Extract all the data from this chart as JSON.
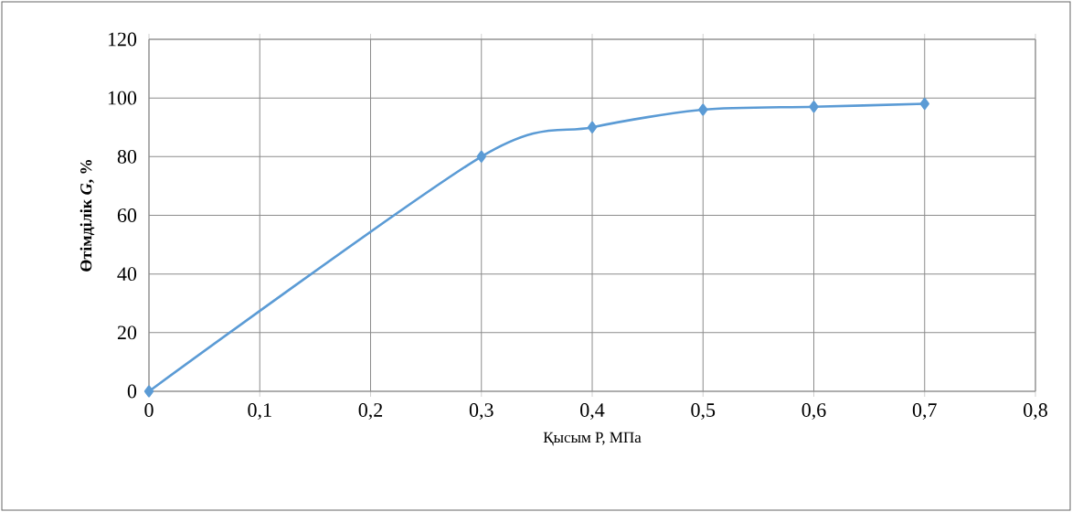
{
  "chart_data": {
    "type": "line",
    "xlabel": "Қысым Р, МПа",
    "ylabel": "Өтімділік  *G*, %",
    "x": [
      0,
      0.3,
      0.4,
      0.5,
      0.6,
      0.7
    ],
    "series": [
      {
        "color": "#5b9bd5",
        "values": [
          0,
          80,
          90,
          96,
          97,
          98
        ]
      }
    ],
    "xlim": [
      0,
      0.8
    ],
    "xticks": [
      {
        "value": 0,
        "label": "0"
      },
      {
        "value": 0.1,
        "label": "0,1"
      },
      {
        "value": 0.2,
        "label": "0,2"
      },
      {
        "value": 0.3,
        "label": "0,3"
      },
      {
        "value": 0.4,
        "label": "0,4"
      },
      {
        "value": 0.5,
        "label": "0,5"
      },
      {
        "value": 0.6,
        "label": "0,6"
      },
      {
        "value": 0.7,
        "label": "0,7"
      },
      {
        "value": 0.8,
        "label": "0,8"
      }
    ],
    "ylim": [
      0,
      120
    ],
    "yticks": [
      0,
      20,
      40,
      60,
      80,
      100,
      120
    ],
    "grid": true,
    "marker": "diamond",
    "line_style": "solid"
  }
}
